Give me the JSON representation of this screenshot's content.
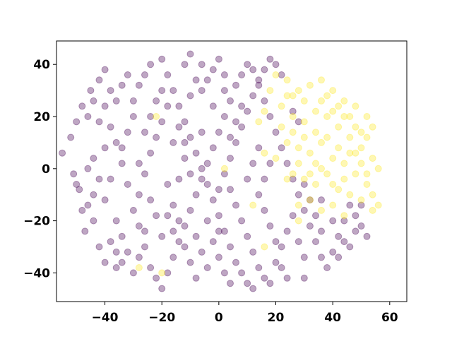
{
  "chart_data": {
    "type": "scatter",
    "title": "",
    "xlabel": "",
    "ylabel": "",
    "xlim": [
      -57,
      66
    ],
    "ylim": [
      -51,
      49
    ],
    "x_ticks": [
      -40,
      -20,
      0,
      20,
      40,
      60
    ],
    "y_ticks": [
      -40,
      -20,
      0,
      20,
      40
    ],
    "x_tick_labels": [
      "−40",
      "−20",
      "0",
      "20",
      "40",
      "60"
    ],
    "y_tick_labels": [
      "−40",
      "−20",
      "0",
      "20",
      "40"
    ],
    "grid": false,
    "legend": "none",
    "marker_alpha": 0.35,
    "series": [
      {
        "class": 0,
        "color": "#440154",
        "points": [
          [
            -55,
            6
          ],
          [
            -52,
            12
          ],
          [
            -50,
            18
          ],
          [
            -48,
            24
          ],
          [
            -51,
            -2
          ],
          [
            -49,
            -8
          ],
          [
            -46,
            -14
          ],
          [
            -44,
            -20
          ],
          [
            -47,
            -24
          ],
          [
            -45,
            30
          ],
          [
            -42,
            34
          ],
          [
            -40,
            38
          ],
          [
            -44,
            4
          ],
          [
            -42,
            -4
          ],
          [
            -40,
            -12
          ],
          [
            -38,
            -28
          ],
          [
            -36,
            -32
          ],
          [
            -34,
            -36
          ],
          [
            -38,
            16
          ],
          [
            -36,
            10
          ],
          [
            -34,
            2
          ],
          [
            -32,
            -6
          ],
          [
            -30,
            -16
          ],
          [
            -28,
            -22
          ],
          [
            -26,
            -30
          ],
          [
            -24,
            -38
          ],
          [
            -22,
            -42
          ],
          [
            -30,
            26
          ],
          [
            -28,
            32
          ],
          [
            -26,
            36
          ],
          [
            -24,
            40
          ],
          [
            -20,
            42
          ],
          [
            -18,
            36
          ],
          [
            -16,
            30
          ],
          [
            -14,
            24
          ],
          [
            -12,
            18
          ],
          [
            -10,
            12
          ],
          [
            -8,
            6
          ],
          [
            -6,
            0
          ],
          [
            -4,
            -6
          ],
          [
            -2,
            -12
          ],
          [
            0,
            -18
          ],
          [
            2,
            -24
          ],
          [
            4,
            -30
          ],
          [
            6,
            -36
          ],
          [
            8,
            -40
          ],
          [
            10,
            -44
          ],
          [
            12,
            -46
          ],
          [
            -20,
            -46
          ],
          [
            -18,
            -40
          ],
          [
            -16,
            -34
          ],
          [
            -14,
            -28
          ],
          [
            -12,
            -22
          ],
          [
            -10,
            -16
          ],
          [
            -8,
            -10
          ],
          [
            -6,
            -4
          ],
          [
            -4,
            2
          ],
          [
            -2,
            8
          ],
          [
            0,
            14
          ],
          [
            2,
            20
          ],
          [
            4,
            26
          ],
          [
            6,
            32
          ],
          [
            8,
            36
          ],
          [
            10,
            40
          ],
          [
            12,
            38
          ],
          [
            14,
            32
          ],
          [
            16,
            26
          ],
          [
            18,
            20
          ],
          [
            20,
            14
          ],
          [
            22,
            8
          ],
          [
            24,
            2
          ],
          [
            26,
            -4
          ],
          [
            28,
            -10
          ],
          [
            30,
            -16
          ],
          [
            32,
            -22
          ],
          [
            34,
            -28
          ],
          [
            36,
            -34
          ],
          [
            38,
            -38
          ],
          [
            40,
            -32
          ],
          [
            42,
            -26
          ],
          [
            44,
            -20
          ],
          [
            46,
            -14
          ],
          [
            48,
            -18
          ],
          [
            50,
            -22
          ],
          [
            52,
            -26
          ],
          [
            -38,
            -4
          ],
          [
            -36,
            -20
          ],
          [
            -34,
            8
          ],
          [
            -32,
            14
          ],
          [
            -30,
            20
          ],
          [
            -28,
            -10
          ],
          [
            -26,
            -2
          ],
          [
            -24,
            6
          ],
          [
            -22,
            12
          ],
          [
            -20,
            18
          ],
          [
            -18,
            24
          ],
          [
            -16,
            10
          ],
          [
            -14,
            -4
          ],
          [
            -12,
            -30
          ],
          [
            -10,
            -36
          ],
          [
            -8,
            -42
          ],
          [
            -6,
            30
          ],
          [
            -4,
            34
          ],
          [
            -2,
            38
          ],
          [
            0,
            42
          ],
          [
            2,
            36
          ],
          [
            4,
            -8
          ],
          [
            6,
            -14
          ],
          [
            8,
            -20
          ],
          [
            10,
            -26
          ],
          [
            12,
            -32
          ],
          [
            14,
            -38
          ],
          [
            16,
            -42
          ],
          [
            18,
            -44
          ],
          [
            20,
            -36
          ],
          [
            22,
            -30
          ],
          [
            24,
            -24
          ],
          [
            26,
            -18
          ],
          [
            28,
            -28
          ],
          [
            30,
            -34
          ],
          [
            -46,
            0
          ],
          [
            -44,
            -10
          ],
          [
            -42,
            18
          ],
          [
            -40,
            24
          ],
          [
            -38,
            30
          ],
          [
            -36,
            -38
          ],
          [
            -30,
            -40
          ],
          [
            -28,
            2
          ],
          [
            -26,
            14
          ],
          [
            -24,
            20
          ],
          [
            -22,
            26
          ],
          [
            -20,
            30
          ],
          [
            -18,
            -6
          ],
          [
            -16,
            -14
          ],
          [
            -14,
            -20
          ],
          [
            -12,
            4
          ],
          [
            -10,
            28
          ],
          [
            -8,
            34
          ],
          [
            -6,
            40
          ],
          [
            -4,
            -20
          ],
          [
            -2,
            -28
          ],
          [
            0,
            -34
          ],
          [
            2,
            -40
          ],
          [
            4,
            12
          ],
          [
            6,
            18
          ],
          [
            8,
            24
          ],
          [
            10,
            -4
          ],
          [
            12,
            2
          ],
          [
            14,
            8
          ],
          [
            16,
            -16
          ],
          [
            18,
            -22
          ],
          [
            20,
            -28
          ],
          [
            22,
            -38
          ],
          [
            24,
            -42
          ],
          [
            -50,
            -6
          ],
          [
            -48,
            -16
          ],
          [
            -34,
            -26
          ],
          [
            -32,
            -32
          ],
          [
            -20,
            -26
          ],
          [
            -18,
            -18
          ],
          [
            -16,
            -24
          ],
          [
            -8,
            -26
          ],
          [
            -6,
            -32
          ],
          [
            -4,
            -38
          ],
          [
            0,
            -8
          ],
          [
            2,
            -2
          ],
          [
            4,
            4
          ],
          [
            6,
            10
          ],
          [
            8,
            16
          ],
          [
            10,
            22
          ],
          [
            12,
            28
          ],
          [
            14,
            34
          ],
          [
            16,
            38
          ],
          [
            18,
            42
          ],
          [
            20,
            40
          ],
          [
            22,
            36
          ],
          [
            30,
            -6
          ],
          [
            32,
            -12
          ],
          [
            34,
            -18
          ],
          [
            36,
            -24
          ],
          [
            44,
            -28
          ],
          [
            46,
            -30
          ],
          [
            48,
            -24
          ],
          [
            14,
            -10
          ],
          [
            16,
            -4
          ],
          [
            18,
            2
          ],
          [
            -36,
            26
          ],
          [
            -34,
            32
          ],
          [
            -32,
            36
          ],
          [
            -12,
            40
          ],
          [
            -10,
            44
          ],
          [
            4,
            -44
          ],
          [
            -40,
            8
          ],
          [
            -24,
            -12
          ],
          [
            -22,
            -18
          ],
          [
            -26,
            -24
          ],
          [
            -28,
            -34
          ],
          [
            -10,
            -2
          ],
          [
            -6,
            14
          ],
          [
            -2,
            24
          ],
          [
            2,
            30
          ],
          [
            0,
            -24
          ],
          [
            -12,
            10
          ],
          [
            -14,
            16
          ],
          [
            26,
            22
          ],
          [
            28,
            18
          ],
          [
            30,
            -42
          ],
          [
            36,
            -12
          ],
          [
            40,
            -20
          ],
          [
            42,
            -34
          ],
          [
            50,
            -14
          ],
          [
            -44,
            26
          ],
          [
            -46,
            20
          ],
          [
            -42,
            -30
          ],
          [
            -40,
            -36
          ]
        ]
      },
      {
        "class": 1,
        "color": "#fde725",
        "points": [
          [
            20,
            36
          ],
          [
            24,
            34
          ],
          [
            28,
            30
          ],
          [
            32,
            32
          ],
          [
            36,
            34
          ],
          [
            40,
            30
          ],
          [
            44,
            26
          ],
          [
            48,
            24
          ],
          [
            52,
            20
          ],
          [
            54,
            16
          ],
          [
            22,
            24
          ],
          [
            26,
            20
          ],
          [
            30,
            18
          ],
          [
            34,
            22
          ],
          [
            38,
            20
          ],
          [
            42,
            16
          ],
          [
            46,
            12
          ],
          [
            50,
            8
          ],
          [
            54,
            4
          ],
          [
            56,
            0
          ],
          [
            24,
            10
          ],
          [
            28,
            8
          ],
          [
            32,
            6
          ],
          [
            36,
            10
          ],
          [
            40,
            4
          ],
          [
            44,
            2
          ],
          [
            48,
            -2
          ],
          [
            52,
            -6
          ],
          [
            54,
            -10
          ],
          [
            56,
            -14
          ],
          [
            26,
            -2
          ],
          [
            30,
            -4
          ],
          [
            34,
            -6
          ],
          [
            38,
            -2
          ],
          [
            42,
            -8
          ],
          [
            46,
            -10
          ],
          [
            50,
            -12
          ],
          [
            54,
            -16
          ],
          [
            28,
            -14
          ],
          [
            32,
            -12
          ],
          [
            36,
            -16
          ],
          [
            40,
            -14
          ],
          [
            44,
            -18
          ],
          [
            22,
            16
          ],
          [
            26,
            14
          ],
          [
            30,
            12
          ],
          [
            34,
            14
          ],
          [
            38,
            12
          ],
          [
            42,
            8
          ],
          [
            46,
            6
          ],
          [
            50,
            2
          ],
          [
            18,
            30
          ],
          [
            16,
            22
          ],
          [
            14,
            18
          ],
          [
            24,
            28
          ],
          [
            36,
            26
          ],
          [
            40,
            22
          ],
          [
            44,
            20
          ],
          [
            48,
            16
          ],
          [
            52,
            12
          ],
          [
            20,
            4
          ],
          [
            24,
            -4
          ],
          [
            28,
            2
          ],
          [
            32,
            -2
          ],
          [
            36,
            0
          ],
          [
            40,
            -6
          ],
          [
            44,
            -4
          ],
          [
            48,
            6
          ],
          [
            52,
            -2
          ],
          [
            34,
            2
          ],
          [
            30,
            26
          ],
          [
            26,
            28
          ],
          [
            38,
            28
          ],
          [
            42,
            24
          ],
          [
            46,
            20
          ],
          [
            50,
            14
          ],
          [
            -22,
            20
          ],
          [
            -28,
            -38
          ],
          [
            -20,
            -40
          ],
          [
            2,
            0
          ],
          [
            12,
            -14
          ],
          [
            16,
            -30
          ],
          [
            16,
            6
          ],
          [
            28,
            -20
          ]
        ]
      }
    ]
  }
}
